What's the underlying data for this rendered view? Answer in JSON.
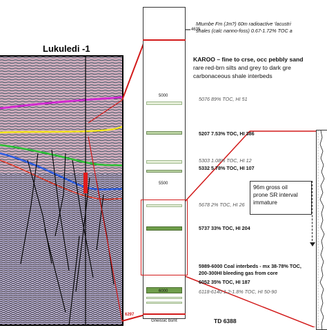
{
  "seismic": {
    "title": "Lukuledi -1"
  },
  "log": {
    "depth_labels": {
      "d4635": "4635",
      "d5000": "5000",
      "d5500": "5500",
      "d6000": "6000",
      "d6297": "6297"
    },
    "base_label": "Gneissic bsmt",
    "td_label": "TD 6388"
  },
  "annotations": {
    "mtumbe_line1": "Mtumbe Fm (Jm?) 60m radioactive ‘lacustri",
    "mtumbe_line2": "shales (calc nanno-foss)  0.67-1.72% TOC a",
    "karoo_line1": "KAROO – fine to crse, occ pebbly sand",
    "karoo_line2": "rare red-brn silts and grey to dark gre",
    "karoo_line3": "carbonaceous shale interbeds",
    "s5076": "5076  89% TOC, HI 51",
    "s5207": "5207  7.53% TOC, HI 386",
    "s5303": "5303  1.08% TOC, HI 12",
    "s5332": "5332  5.78% TOC, HI 107",
    "s5678": "5678  2% TOC, HI 26",
    "s5737": "5737   33% TOC, HI 204",
    "s5989_line1": "5989-6000  Coal interbeds  - mx 38-78% TOC,",
    "s5989_line2": "200-300HI    bleeding gas from core",
    "s6052": "6052  35% TOC, HI 187",
    "s6118": "6118-6140 1.2-1.8% TOC, HI 50-90",
    "gross_line1": "96m gross oil",
    "gross_line2": "prone SR interval",
    "gross_line3": "immature"
  },
  "colors": {
    "callout_red": "#d21a1a",
    "bed_green": "#bcd5a4",
    "bed_dark_green": "#6f9e4b",
    "horizon_magenta": "#d02ad0",
    "horizon_yellow": "#f4e81a",
    "horizon_green": "#2fbf3a",
    "horizon_blue": "#2d5de0"
  }
}
